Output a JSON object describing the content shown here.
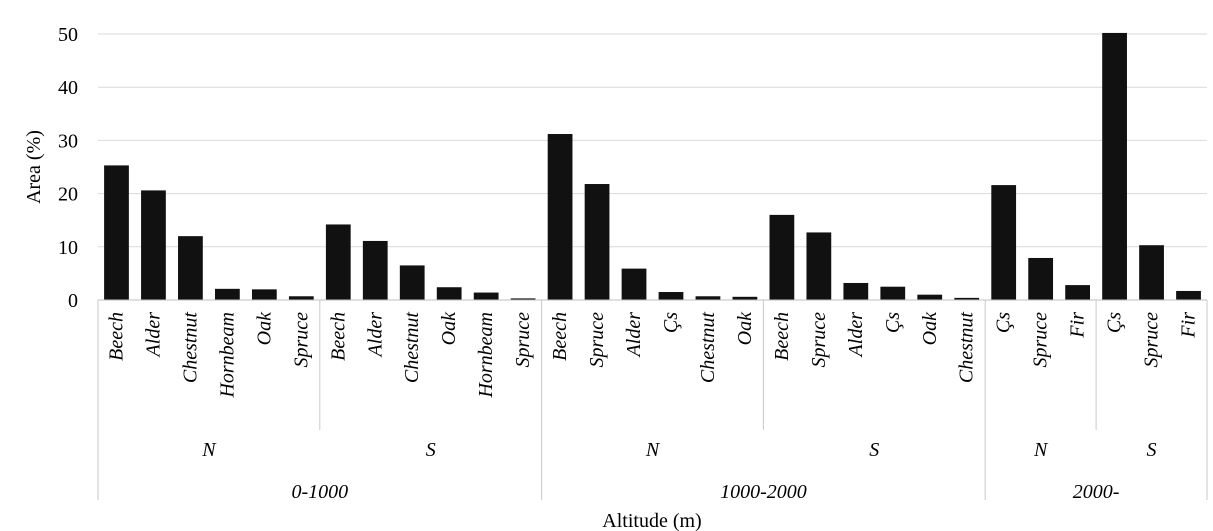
{
  "chart_data": {
    "type": "bar",
    "title": "",
    "xlabel": "Altitude (m)",
    "ylabel": "Area (%)",
    "ylim": [
      0,
      50
    ],
    "yticks": [
      0,
      10,
      20,
      30,
      40,
      50
    ],
    "grid": true,
    "bar_color": "#111111",
    "groups": [
      {
        "altitude": "0-1000",
        "subgroups": [
          {
            "aspect": "N",
            "categories": [
              "Beech",
              "Alder",
              "Chestnut",
              "Hornbeam",
              "Oak",
              "Spruce"
            ],
            "values": [
              25.3,
              20.6,
              12.0,
              2.1,
              2.0,
              0.7
            ]
          },
          {
            "aspect": "S",
            "categories": [
              "Beech",
              "Alder",
              "Chestnut",
              "Oak",
              "Hornbeam",
              "Spruce"
            ],
            "values": [
              14.2,
              11.1,
              6.5,
              2.4,
              1.4,
              0.3
            ]
          }
        ]
      },
      {
        "altitude": "1000-2000",
        "subgroups": [
          {
            "aspect": "N",
            "categories": [
              "Beech",
              "Spruce",
              "Alder",
              "Çs",
              "Chestnut",
              "Oak"
            ],
            "values": [
              31.2,
              21.8,
              5.9,
              1.5,
              0.7,
              0.6
            ]
          },
          {
            "aspect": "S",
            "categories": [
              "Beech",
              "Spruce",
              "Alder",
              "Çs",
              "Oak",
              "Chestnut"
            ],
            "values": [
              16.0,
              12.7,
              3.2,
              2.5,
              1.0,
              0.4
            ]
          }
        ]
      },
      {
        "altitude": "2000-",
        "subgroups": [
          {
            "aspect": "N",
            "categories": [
              "Çs",
              "Spruce",
              "Fir"
            ],
            "values": [
              21.6,
              7.9,
              2.8
            ]
          },
          {
            "aspect": "S",
            "categories": [
              "Çs",
              "Spruce",
              "Fir"
            ],
            "values": [
              50.2,
              10.3,
              1.7
            ]
          }
        ]
      }
    ]
  }
}
